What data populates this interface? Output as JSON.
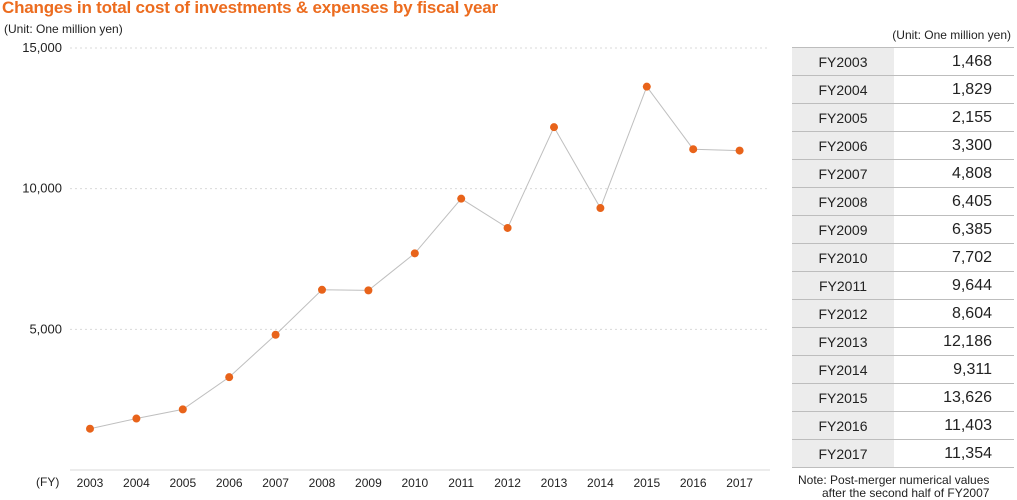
{
  "title": "Changes in total cost of investments & expenses by fiscal year",
  "unit_left": "(Unit: One million yen)",
  "unit_right": "(Unit: One million yen)",
  "note_line1": "Note: Post-merger numerical values",
  "note_line2": "after the second half of FY2007",
  "colors": {
    "title": "#ec6c1f",
    "marker": "#e8631a",
    "line": "#bfbfbf",
    "grid": "#d9d9d9",
    "table_header_bg": "#ececec"
  },
  "table": {
    "rows": [
      {
        "label": "FY2003",
        "value": "1,468"
      },
      {
        "label": "FY2004",
        "value": "1,829"
      },
      {
        "label": "FY2005",
        "value": "2,155"
      },
      {
        "label": "FY2006",
        "value": "3,300"
      },
      {
        "label": "FY2007",
        "value": "4,808"
      },
      {
        "label": "FY2008",
        "value": "6,405"
      },
      {
        "label": "FY2009",
        "value": "6,385"
      },
      {
        "label": "FY2010",
        "value": "7,702"
      },
      {
        "label": "FY2011",
        "value": "9,644"
      },
      {
        "label": "FY2012",
        "value": "8,604"
      },
      {
        "label": "FY2013",
        "value": "12,186"
      },
      {
        "label": "FY2014",
        "value": "9,311"
      },
      {
        "label": "FY2015",
        "value": "13,626"
      },
      {
        "label": "FY2016",
        "value": "11,403"
      },
      {
        "label": "FY2017",
        "value": "11,354"
      }
    ]
  },
  "chart_data": {
    "type": "line",
    "title": "Changes in total cost of investments & expenses by fiscal year",
    "xlabel": "(FY)",
    "ylabel": "(Unit: One million yen)",
    "x": [
      "2003",
      "2004",
      "2005",
      "2006",
      "2007",
      "2008",
      "2009",
      "2010",
      "2011",
      "2012",
      "2013",
      "2014",
      "2015",
      "2016",
      "2017"
    ],
    "series": [
      {
        "values": [
          1468,
          1829,
          2155,
          3300,
          4808,
          6405,
          6385,
          7702,
          9644,
          8604,
          12186,
          9311,
          13626,
          11403,
          11354
        ]
      }
    ],
    "ylim": [
      0,
      15000
    ],
    "yticks": [
      5000,
      10000,
      15000
    ],
    "ytick_labels": [
      "5,000",
      "10,000",
      "15,000"
    ],
    "grid": true
  }
}
